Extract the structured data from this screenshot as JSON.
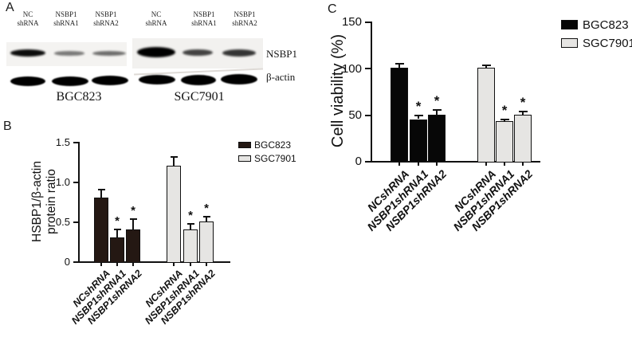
{
  "panel_letters": {
    "a": "A",
    "b": "B",
    "c": "C"
  },
  "panel_a": {
    "lanes": [
      {
        "line1": "NC",
        "line2": "shRNA"
      },
      {
        "line1": "NSBP1",
        "line2": "shRNA1"
      },
      {
        "line1": "NSBP1",
        "line2": "shRNA2"
      },
      {
        "line1": "NC",
        "line2": "shRNA"
      },
      {
        "line1": "NSBP1",
        "line2": "shRNA1"
      },
      {
        "line1": "NSBP1",
        "line2": "shRNA2"
      }
    ],
    "band_labels": [
      "NSBP1",
      "β-actin"
    ],
    "cell_lines": [
      "BGC823",
      "SGC7901"
    ],
    "nsbp1_band_intensities": [
      0.95,
      0.5,
      0.55,
      1.0,
      0.72,
      0.78
    ],
    "actin_band_intensities": [
      1,
      1,
      1,
      1,
      1,
      1
    ]
  },
  "chart_data": [
    {
      "panel": "B",
      "type": "bar",
      "title": "",
      "ylabel_lines": [
        "HSBP1/β-actin",
        "protein ratio"
      ],
      "categories": [
        "NCshRNA",
        "NSBP1shRNA1",
        "NSBP1shRNA2"
      ],
      "series": [
        {
          "name": "BGC823",
          "color": "#241813",
          "values": [
            0.8,
            0.3,
            0.4
          ],
          "errors": [
            0.1,
            0.1,
            0.13
          ],
          "significance": [
            "",
            "*",
            "*"
          ]
        },
        {
          "name": "SGC7901",
          "color": "#e6e5e3",
          "values": [
            1.2,
            0.4,
            0.5
          ],
          "errors": [
            0.11,
            0.07,
            0.06
          ],
          "significance": [
            "",
            "*",
            "*"
          ]
        }
      ],
      "ylim": [
        0,
        1.5
      ],
      "yticks": [
        "0",
        "0.5",
        "1.0",
        "1.5"
      ],
      "grid": false,
      "legend_position": "right-top"
    },
    {
      "panel": "C",
      "type": "bar",
      "title": "",
      "ylabel": "Cell viability (%)",
      "categories": [
        "NCshRNA",
        "NSBP1shRNA1",
        "NSBP1shRNA2"
      ],
      "series": [
        {
          "name": "BGC823",
          "color": "#070707",
          "values": [
            100,
            45,
            50
          ],
          "errors": [
            5,
            4,
            5
          ],
          "significance": [
            "",
            "*",
            "*"
          ]
        },
        {
          "name": "SGC7901",
          "color": "#e6e5e3",
          "values": [
            100,
            43,
            50
          ],
          "errors": [
            3,
            2,
            3
          ],
          "significance": [
            "",
            "*",
            "*"
          ]
        }
      ],
      "ylim": [
        0,
        150
      ],
      "yticks": [
        "0",
        "50",
        "100",
        "150"
      ],
      "grid": false,
      "legend_position": "right-top"
    }
  ]
}
